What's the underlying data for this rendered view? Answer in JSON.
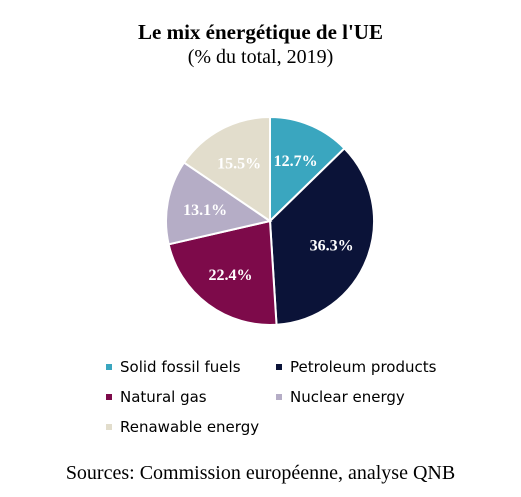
{
  "title": "Le mix énergétique de l'UE",
  "subtitle": "(% du total, 2019)",
  "source": "Sources: Commission européenne, analyse QNB",
  "chart_data": {
    "type": "pie",
    "title": "Le mix énergétique de l'UE",
    "subtitle": "(% du total, 2019)",
    "start": "12 o'clock",
    "direction": "clockwise",
    "legend_position": "bottom",
    "slices": [
      {
        "label": "Solid fossil fuels",
        "value": 12.7,
        "display": "12.7%",
        "color": "#3aa6bf"
      },
      {
        "label": "Petroleum products",
        "value": 36.3,
        "display": "36.3%",
        "color": "#0b1338"
      },
      {
        "label": "Natural gas",
        "value": 22.4,
        "display": "22.4%",
        "color": "#7d0a4a"
      },
      {
        "label": "Nuclear energy",
        "value": 13.1,
        "display": "13.1%",
        "color": "#b5adc6"
      },
      {
        "label": "Renawable energy",
        "value": 15.5,
        "display": "15.5%",
        "color": "#e2ddcc"
      }
    ]
  }
}
